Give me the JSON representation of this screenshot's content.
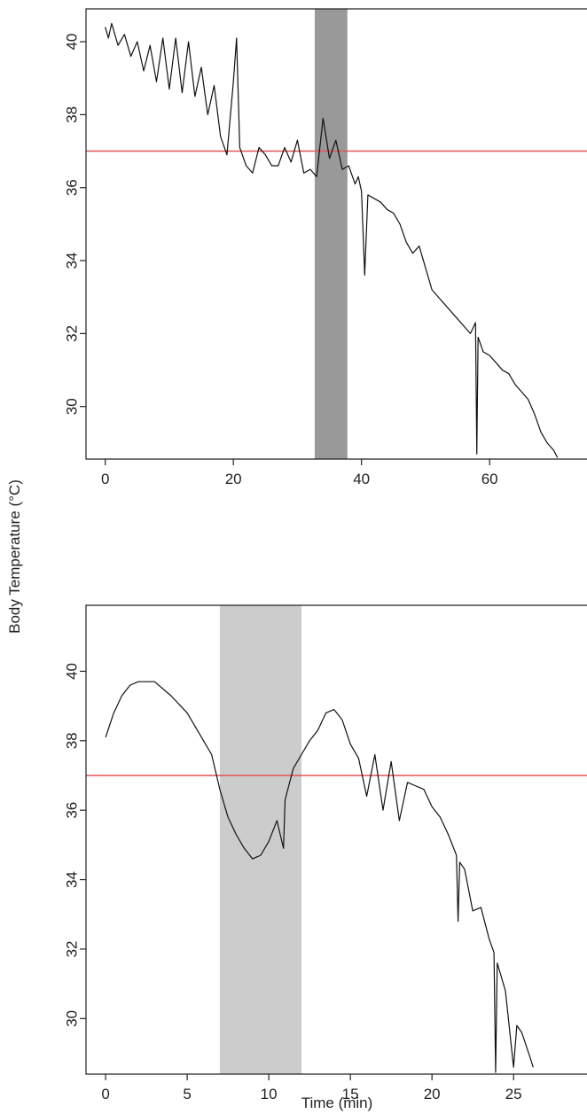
{
  "y_label": "Body Temperature (°C)",
  "chart_data": [
    {
      "type": "line",
      "x": [
        0,
        0.5,
        1,
        2,
        3,
        4,
        5,
        6,
        7,
        8,
        9,
        10,
        11,
        12,
        13,
        14,
        15,
        16,
        17,
        18,
        19,
        20,
        20.5,
        21,
        22,
        23,
        24,
        25,
        26,
        27,
        28,
        29,
        30,
        31,
        32,
        33,
        34,
        35,
        36,
        37,
        38,
        39,
        39.5,
        40,
        40.5,
        41,
        42,
        43,
        44,
        45,
        46,
        47,
        48,
        49,
        50,
        51,
        52,
        53,
        54,
        55,
        56,
        57,
        57.8,
        58,
        58.2,
        59,
        60,
        61,
        62,
        63,
        64,
        65,
        66,
        67,
        68,
        69,
        70,
        70.6
      ],
      "values": [
        40.4,
        40.1,
        40.5,
        39.9,
        40.2,
        39.6,
        40.0,
        39.2,
        39.9,
        38.9,
        40.1,
        38.7,
        40.1,
        38.6,
        40.0,
        38.5,
        39.3,
        38.0,
        38.8,
        37.4,
        36.9,
        38.9,
        40.1,
        37.1,
        36.6,
        36.4,
        37.1,
        36.9,
        36.6,
        36.6,
        37.1,
        36.7,
        37.3,
        36.4,
        36.5,
        36.3,
        37.9,
        36.8,
        37.3,
        36.5,
        36.6,
        36.1,
        36.3,
        35.9,
        33.6,
        35.8,
        35.7,
        35.6,
        35.4,
        35.3,
        35.0,
        34.5,
        34.2,
        34.4,
        33.8,
        33.2,
        33.0,
        32.8,
        32.6,
        32.4,
        32.2,
        32.0,
        32.3,
        28.7,
        31.9,
        31.5,
        31.4,
        31.2,
        31.0,
        30.9,
        30.6,
        30.4,
        30.2,
        29.8,
        29.3,
        29.0,
        28.8,
        28.6
      ],
      "color": "#111111",
      "xlim": [
        -3,
        75.2
      ],
      "ylim": [
        28.56,
        40.9
      ],
      "xticks": [
        0,
        20,
        40,
        60
      ],
      "yticks": [
        30,
        32,
        34,
        36,
        38,
        40
      ],
      "shaded_x": [
        32.7,
        37.8
      ],
      "shaded_color": "#999999",
      "hline": 37,
      "hline_color": "#e05555"
    },
    {
      "type": "line",
      "xlabel": "Time (min)",
      "x": [
        0,
        0.5,
        1,
        1.5,
        2,
        3,
        4,
        5,
        6,
        6.5,
        7,
        7.5,
        8,
        8.5,
        9,
        9.5,
        10,
        10.5,
        10.9,
        11,
        11.5,
        12,
        12.5,
        13,
        13.5,
        14,
        14.5,
        15,
        15.5,
        16,
        16.5,
        17,
        17.5,
        18,
        18.5,
        19,
        19.5,
        20,
        20.5,
        21,
        21.5,
        21.6,
        21.7,
        22,
        22.5,
        23,
        23.5,
        23.8,
        23.9,
        24,
        24.5,
        25,
        25.2,
        25.5,
        26,
        26.2
      ],
      "values": [
        38.1,
        38.8,
        39.3,
        39.6,
        39.7,
        39.7,
        39.3,
        38.8,
        38.0,
        37.6,
        36.6,
        35.8,
        35.3,
        34.9,
        34.6,
        34.7,
        35.1,
        35.7,
        34.9,
        36.3,
        37.2,
        37.6,
        38.0,
        38.3,
        38.8,
        38.9,
        38.6,
        37.9,
        37.5,
        36.4,
        37.6,
        36.0,
        37.4,
        35.7,
        36.8,
        36.7,
        36.6,
        36.1,
        35.8,
        35.3,
        34.7,
        32.8,
        34.5,
        34.3,
        33.1,
        33.2,
        32.3,
        31.9,
        28.45,
        31.6,
        30.8,
        28.6,
        29.8,
        29.6,
        28.9,
        28.6
      ],
      "color": "#111111",
      "xlim": [
        -1.2,
        29.5
      ],
      "ylim": [
        28.4,
        41.9
      ],
      "xticks": [
        0,
        5,
        10,
        15,
        20,
        25
      ],
      "yticks": [
        30,
        32,
        34,
        36,
        38,
        40
      ],
      "shaded_x": [
        7,
        12
      ],
      "shaded_color": "#cccccc",
      "hline": 37,
      "hline_color": "#e05555"
    }
  ]
}
